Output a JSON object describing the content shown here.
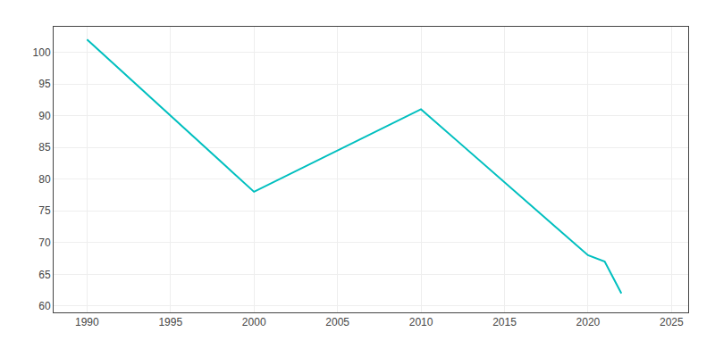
{
  "chart_data": {
    "type": "line",
    "x": [
      1990,
      2000,
      2010,
      2020,
      2021,
      2022
    ],
    "values": [
      102,
      78,
      91,
      68,
      67,
      62
    ],
    "color": "#00BFBF",
    "xlim": [
      1988,
      2026
    ],
    "ylim": [
      59,
      104
    ],
    "xticks": [
      1990,
      1995,
      2000,
      2005,
      2010,
      2015,
      2020,
      2025
    ],
    "yticks": [
      60,
      65,
      70,
      75,
      80,
      85,
      90,
      95,
      100
    ],
    "grid": true
  }
}
